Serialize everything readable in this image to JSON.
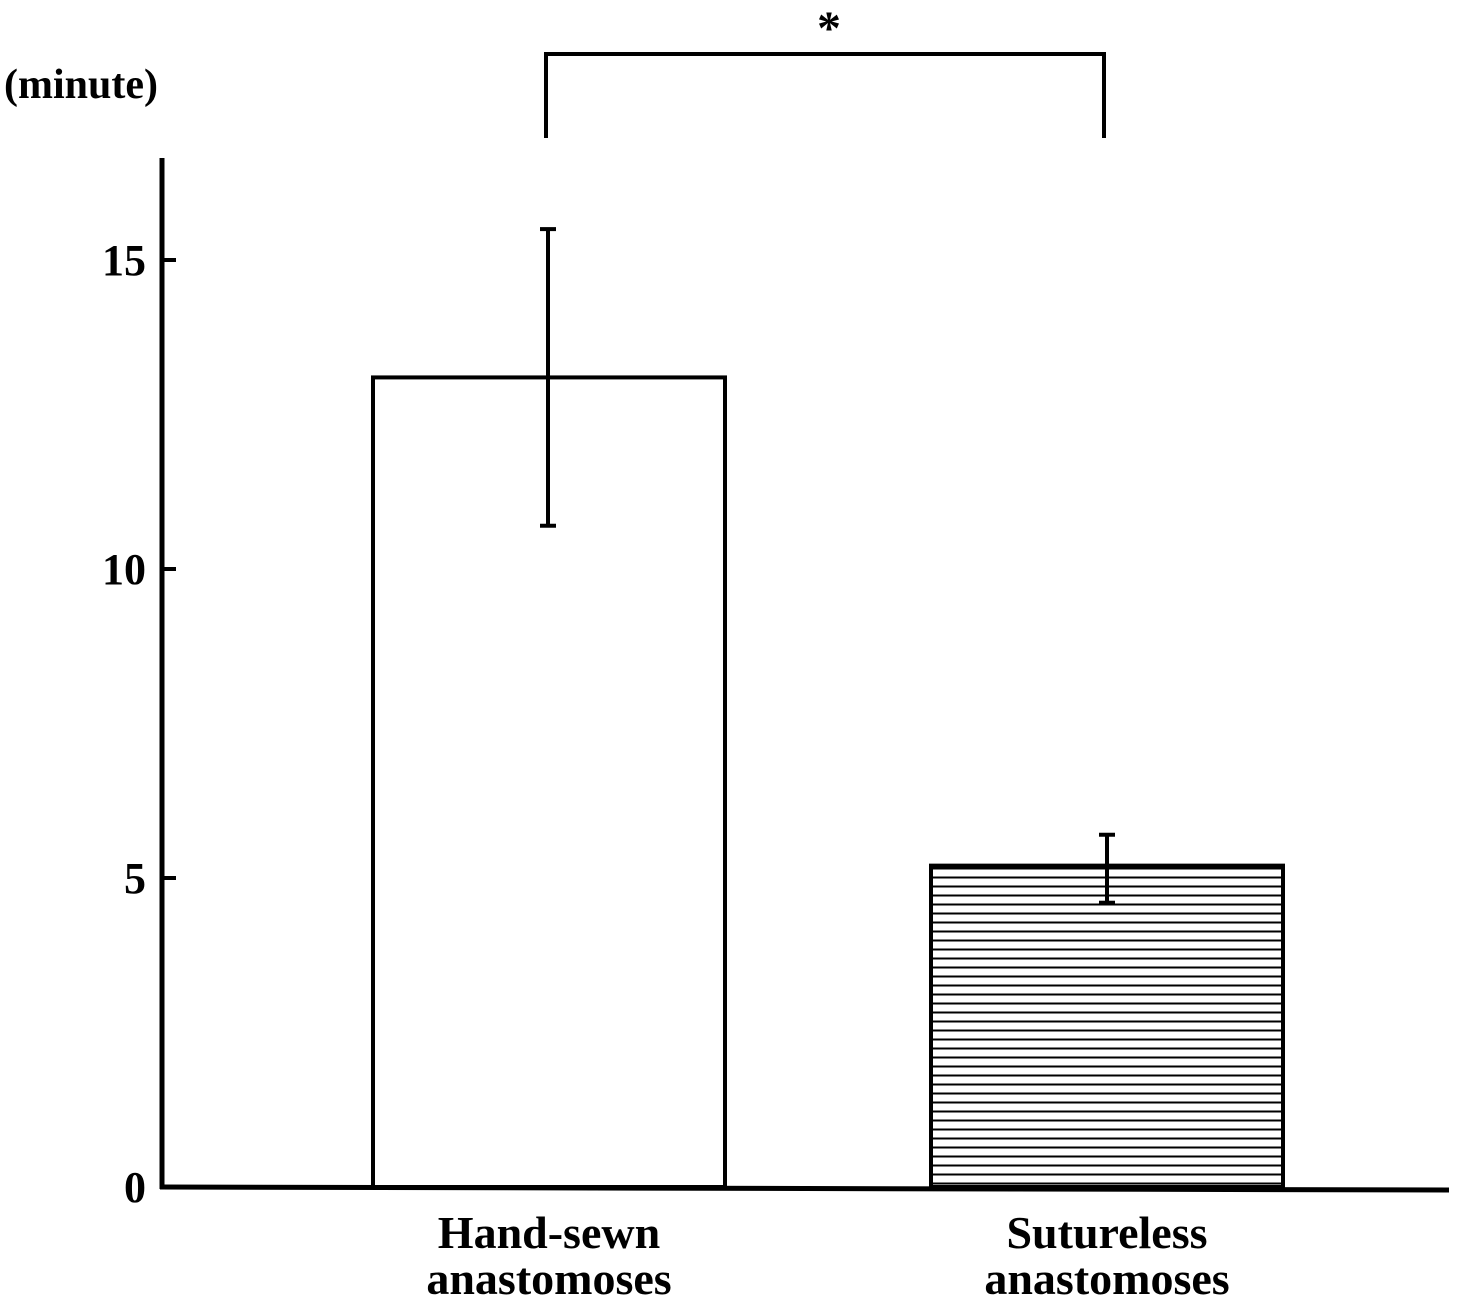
{
  "chart_data": {
    "type": "bar",
    "title": "",
    "xlabel": "",
    "ylabel": "(minute)",
    "ylim": [
      0,
      16.5
    ],
    "yticks": [
      0,
      5,
      10,
      15
    ],
    "grid": false,
    "categories": [
      [
        "Hand-sewn",
        "anastomoses"
      ],
      [
        "Sutureless",
        "anastomoses"
      ]
    ],
    "values": [
      13.1,
      5.2
    ],
    "error_upper": [
      15.5,
      5.7
    ],
    "error_lower": [
      10.7,
      4.6
    ],
    "fills": [
      "plain",
      "horizontal-hatch"
    ],
    "significance": {
      "between": [
        0,
        1
      ],
      "label": "*"
    }
  },
  "colors": {
    "ink": "#000000",
    "background": "#ffffff"
  }
}
